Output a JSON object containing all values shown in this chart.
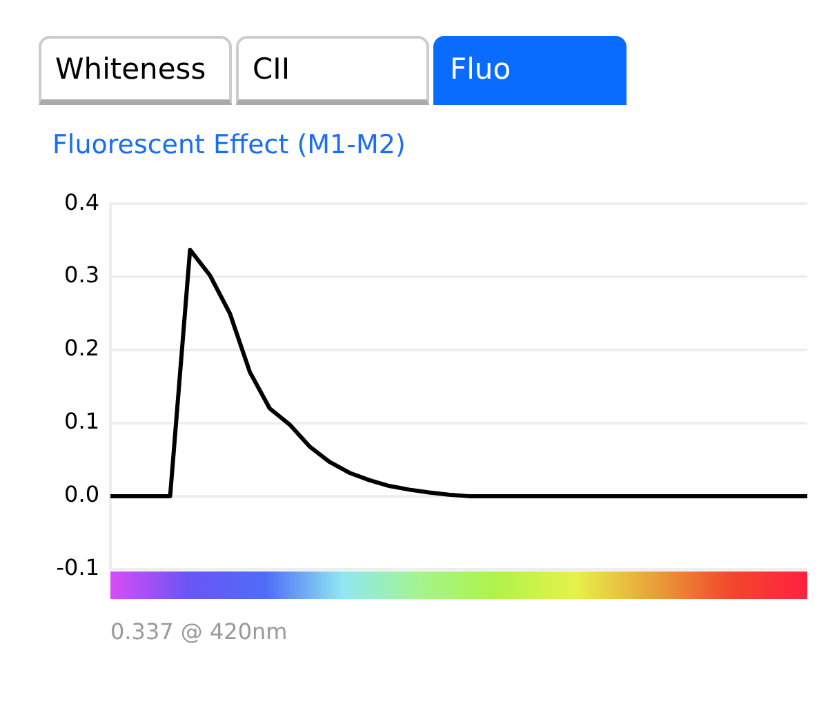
{
  "chart_data": {
    "type": "line",
    "title": "Fluorescent Effect (M1-M2)",
    "annotations": [
      "Whiteness",
      "CII",
      "Fluo",
      "0.337 @ 420nm"
    ],
    "categories": [
      null,
      null,
      null,
      null,
      null,
      null,
      null,
      null,
      null,
      null,
      null,
      null,
      null,
      null,
      null,
      null,
      null,
      null,
      null,
      null,
      null,
      null,
      null,
      null,
      null,
      null,
      null,
      null,
      null,
      null,
      null,
      null,
      null,
      null,
      null,
      null
    ],
    "series": [
      {
        "color": "#000000",
        "values": [
          0,
          0,
          0,
          0,
          0.337,
          0.302,
          0.25,
          0.17,
          0.12,
          0.098,
          0.068,
          0.047,
          0.032,
          0.022,
          0.014,
          0.009,
          0.005,
          0.002,
          0,
          0,
          0,
          0,
          0,
          0,
          0,
          0,
          0,
          0,
          0,
          0,
          0,
          0,
          0,
          0,
          0,
          0
        ]
      }
    ],
    "ylim": [
      -0.1,
      0.4
    ],
    "yticks": [
      -0.1,
      {
        "value": 0,
        "label": "0.0"
      },
      0.1,
      0.2,
      0.3,
      0.4
    ],
    "grid": "y",
    "legend": false,
    "marker": "none",
    "line_style": "solid",
    "tick_labels": "y"
  }
}
